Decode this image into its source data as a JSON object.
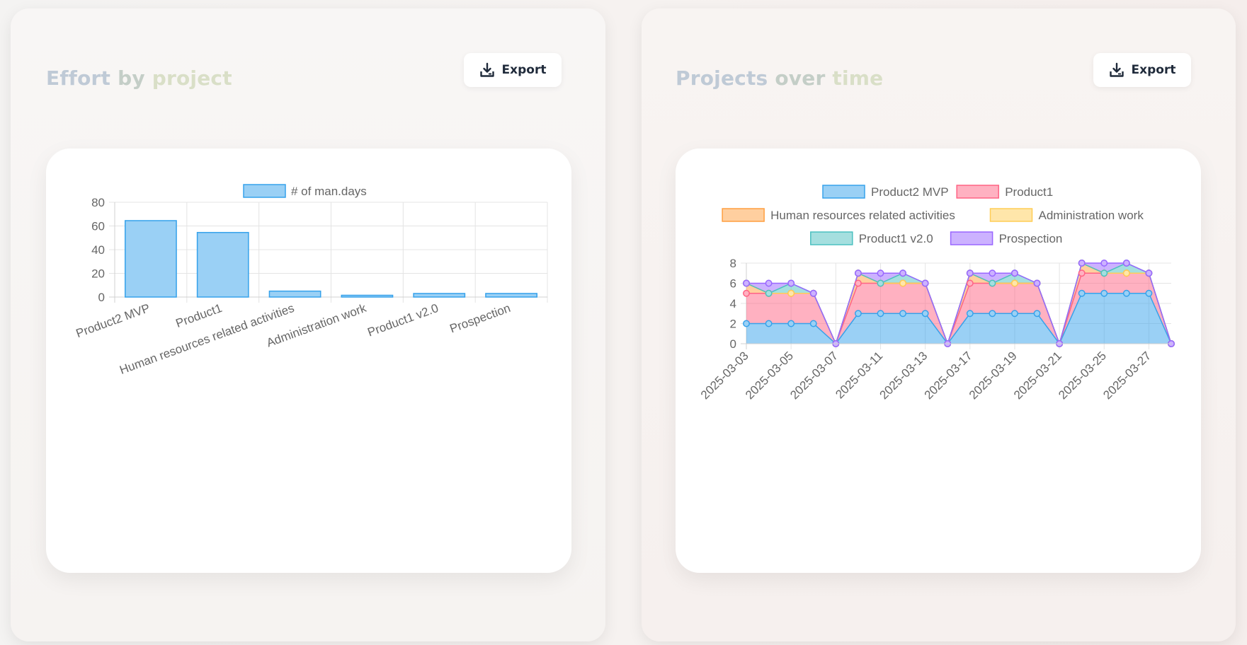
{
  "panels": [
    {
      "title_words": [
        "Effort",
        "by",
        "project"
      ],
      "export_label": "Export"
    },
    {
      "title_words": [
        "Projects",
        "over",
        "time"
      ],
      "export_label": "Export"
    }
  ],
  "icons": {
    "export": "download-tray-icon"
  },
  "colors": {
    "title_word_1": "#bfcad6",
    "title_word_2": "#c4cec7",
    "title_word_3": "#d9dfc7",
    "button_text": "#1f2a3a",
    "bar_fill": "#9ad0f5",
    "bar_stroke": "#36a2eb"
  },
  "chart_data": [
    {
      "type": "bar",
      "categories": [
        "Product2 MVP",
        "Product1",
        "Human resources related activities",
        "Administration work",
        "Product1 v2.0",
        "Prospection"
      ],
      "series": [
        {
          "name": "# of man.days",
          "values": [
            64.5,
            54.5,
            5,
            1.5,
            3,
            3
          ],
          "color": "#9ad0f5",
          "border": "#36a2eb"
        }
      ],
      "ylim": [
        0,
        80
      ],
      "yticks": [
        0,
        20,
        40,
        60,
        80
      ],
      "grid": true,
      "legend": "top"
    },
    {
      "type": "area",
      "stacked": true,
      "x": [
        "2025-03-03",
        "2025-03-04",
        "2025-03-05",
        "2025-03-06",
        "2025-03-07",
        "2025-03-10",
        "2025-03-11",
        "2025-03-12",
        "2025-03-13",
        "2025-03-14",
        "2025-03-17",
        "2025-03-18",
        "2025-03-19",
        "2025-03-20",
        "2025-03-21",
        "2025-03-24",
        "2025-03-25",
        "2025-03-26",
        "2025-03-27",
        "2025-03-28"
      ],
      "xtick_labels": [
        "2025-03-03",
        "2025-03-05",
        "2025-03-07",
        "2025-03-11",
        "2025-03-13",
        "2025-03-17",
        "2025-03-19",
        "2025-03-21",
        "2025-03-25",
        "2025-03-27"
      ],
      "series": [
        {
          "name": "Product2 MVP",
          "color": "#36a2eb",
          "fill": "#9ad0f5",
          "values": [
            2,
            2,
            2,
            2,
            0,
            3,
            3,
            3,
            3,
            0,
            3,
            3,
            3,
            3,
            0,
            5,
            5,
            5,
            5,
            0
          ]
        },
        {
          "name": "Product1",
          "color": "#ff6384",
          "fill": "#ffb1c1",
          "values": [
            3,
            3,
            3,
            3,
            0,
            3,
            3,
            3,
            3,
            0,
            3,
            3,
            3,
            3,
            0,
            2,
            2,
            2,
            2,
            0
          ]
        },
        {
          "name": "Human resources related activities",
          "color": "#ff9f40",
          "fill": "#ffcf9f",
          "values": [
            1,
            0,
            0,
            0,
            0,
            1,
            0,
            0,
            0,
            0,
            1,
            0,
            0,
            0,
            0,
            1,
            0,
            0,
            0,
            0
          ]
        },
        {
          "name": "Administration work",
          "color": "#ffcd56",
          "fill": "#ffe6aa",
          "values": [
            0,
            0,
            0,
            0,
            0,
            0,
            0,
            0,
            0,
            0,
            0,
            0,
            0,
            0,
            0,
            0,
            0,
            0,
            0,
            0
          ]
        },
        {
          "name": "Product1 v2.0",
          "color": "#4bc0c0",
          "fill": "#a5dfdf",
          "values": [
            0,
            0,
            1,
            0,
            0,
            0,
            0,
            1,
            0,
            0,
            0,
            0,
            1,
            0,
            0,
            0,
            0,
            1,
            0,
            0
          ]
        },
        {
          "name": "Prospection",
          "color": "#9966ff",
          "fill": "#ccb2ff",
          "values": [
            0,
            1,
            0,
            0,
            0,
            0,
            1,
            0,
            0,
            0,
            0,
            1,
            0,
            0,
            0,
            0,
            1,
            0,
            0,
            0
          ]
        }
      ],
      "ylim": [
        0,
        8
      ],
      "yticks": [
        0,
        2,
        4,
        6,
        8
      ],
      "grid": true,
      "legend": "top"
    }
  ]
}
